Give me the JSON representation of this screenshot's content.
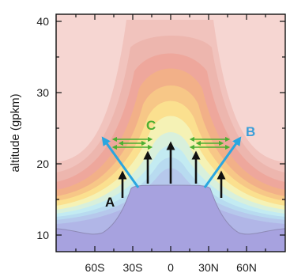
{
  "axes": {
    "ylabel": "altitude (gpkm)",
    "y_ticks": [
      "10",
      "20",
      "30",
      "40"
    ],
    "x_ticks": [
      "60S",
      "30S",
      "0",
      "30N",
      "60N"
    ]
  },
  "labels": {
    "A": "A",
    "B": "B",
    "C": "C"
  },
  "colors": {
    "troposphere": "#a7a2df",
    "arrow_blue": "#2aa6e0",
    "label_blue": "#3a9ed8",
    "mixing_green": "#4caf32",
    "upwelling": "#111111",
    "background": "#f6d6d2"
  }
}
